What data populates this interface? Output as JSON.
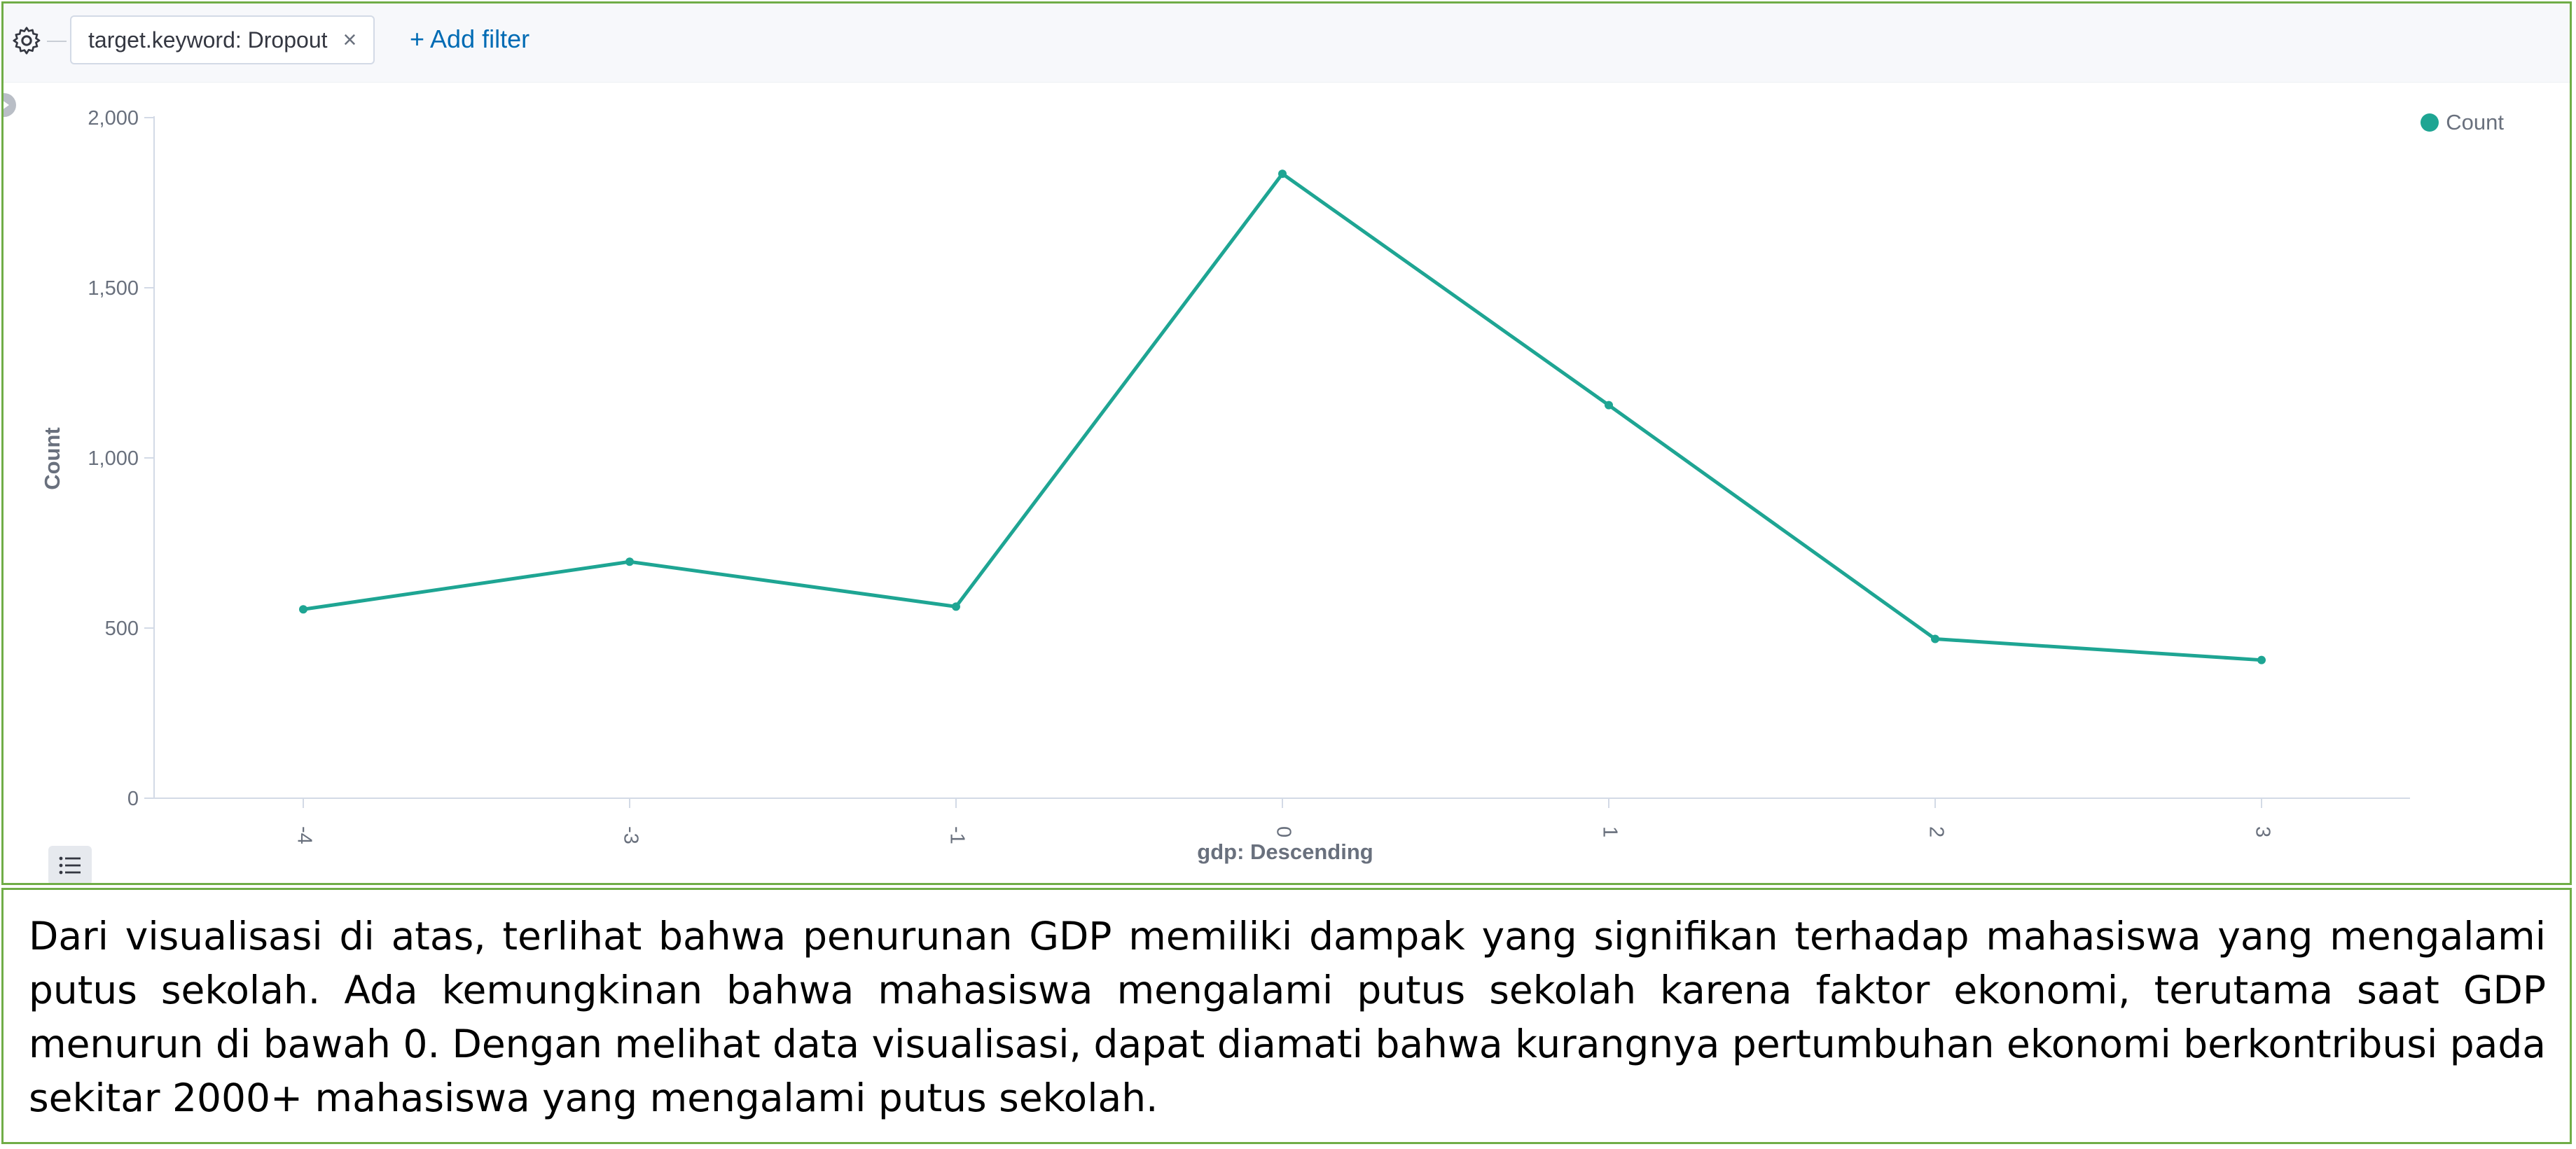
{
  "filter_bar": {
    "filter_label": "target.keyword: Dropout",
    "remove_glyph": "×",
    "add_filter_label": "+ Add filter"
  },
  "icons": [
    "gear-icon",
    "close-icon",
    "collapse-arrow-icon",
    "table-list-icon"
  ],
  "colors": {
    "series": "#1ea593",
    "accent_link": "#006bb4",
    "border": "#70ad47"
  },
  "legend": {
    "label": "Count"
  },
  "chart_data": {
    "type": "line",
    "xlabel": "gdp: Descending",
    "ylabel": "Count",
    "categories": [
      "-4",
      "-3",
      "-1",
      "0",
      "1",
      "2",
      "3"
    ],
    "series": [
      {
        "name": "Count",
        "values": [
          555,
          695,
          563,
          1835,
          1155,
          468,
          406
        ]
      }
    ],
    "ylim": [
      0,
      2000
    ],
    "yticks": [
      0,
      500,
      1000,
      1500,
      2000
    ],
    "ytick_labels": [
      "0",
      "500",
      "1,000",
      "1,500",
      "2,000"
    ],
    "legend_position": "top-right",
    "grid": false
  },
  "caption": {
    "text": "Dari visualisasi di atas, terlihat bahwa penurunan GDP memiliki dampak yang signifikan terhadap mahasiswa yang mengalami putus sekolah. Ada kemungkinan bahwa mahasiswa mengalami putus sekolah karena faktor ekonomi, terutama saat GDP menurun di bawah 0. Dengan melihat data visualisasi, dapat diamati bahwa kurangnya pertumbuhan ekonomi berkontribusi pada sekitar 2000+ mahasiswa yang mengalami putus sekolah."
  }
}
